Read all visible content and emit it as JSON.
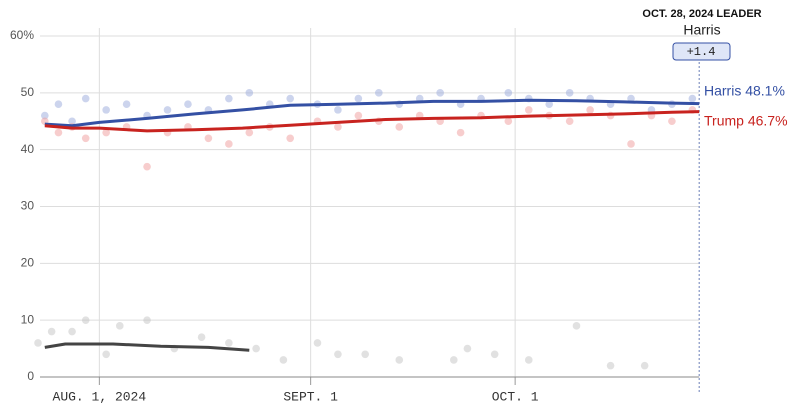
{
  "chart_data": {
    "type": "line",
    "xlim": [
      "2024-07-23",
      "2024-10-29"
    ],
    "xticks": [
      {
        "value": "2024-08-01",
        "label": "AUG. 1, 2024"
      },
      {
        "value": "2024-09-01",
        "label": "SEPT. 1"
      },
      {
        "value": "2024-10-01",
        "label": "OCT. 1"
      }
    ],
    "ylim": [
      0,
      60
    ],
    "yticks": [
      0,
      10,
      20,
      30,
      40,
      50,
      {
        "value": 60,
        "label": "60%"
      }
    ],
    "grid": true,
    "current_date": "2024-10-28",
    "leader": {
      "title": "OCT. 28, 2024 LEADER",
      "name": "Harris",
      "margin_label": "+1.4"
    },
    "polls": [
      {
        "color": "#9aa9dc",
        "x": [
          "2024-07-24",
          "2024-07-26",
          "2024-07-28",
          "2024-07-30",
          "2024-08-02",
          "2024-08-05",
          "2024-08-08",
          "2024-08-11",
          "2024-08-14",
          "2024-08-17",
          "2024-08-20",
          "2024-08-23",
          "2024-08-26",
          "2024-08-29",
          "2024-09-02",
          "2024-09-05",
          "2024-09-08",
          "2024-09-11",
          "2024-09-14",
          "2024-09-17",
          "2024-09-20",
          "2024-09-23",
          "2024-09-26",
          "2024-09-30",
          "2024-10-03",
          "2024-10-06",
          "2024-10-09",
          "2024-10-12",
          "2024-10-15",
          "2024-10-18",
          "2024-10-21",
          "2024-10-24",
          "2024-10-27"
        ],
        "values": [
          46,
          48,
          45,
          49,
          47,
          48,
          46,
          47,
          48,
          47,
          49,
          50,
          48,
          49,
          48,
          47,
          49,
          50,
          48,
          49,
          50,
          48,
          49,
          50,
          49,
          48,
          50,
          49,
          48,
          49,
          47,
          48,
          49
        ]
      },
      {
        "color": "#ef9c9c",
        "x": [
          "2024-07-24",
          "2024-07-26",
          "2024-07-28",
          "2024-07-30",
          "2024-08-02",
          "2024-08-05",
          "2024-08-08",
          "2024-08-11",
          "2024-08-14",
          "2024-08-17",
          "2024-08-20",
          "2024-08-23",
          "2024-08-26",
          "2024-08-29",
          "2024-09-02",
          "2024-09-05",
          "2024-09-08",
          "2024-09-11",
          "2024-09-14",
          "2024-09-17",
          "2024-09-20",
          "2024-09-23",
          "2024-09-26",
          "2024-09-30",
          "2024-10-03",
          "2024-10-06",
          "2024-10-09",
          "2024-10-12",
          "2024-10-15",
          "2024-10-18",
          "2024-10-21",
          "2024-10-24",
          "2024-10-27"
        ],
        "values": [
          45,
          43,
          44,
          42,
          43,
          44,
          37,
          43,
          44,
          42,
          41,
          43,
          44,
          42,
          45,
          44,
          46,
          45,
          44,
          46,
          45,
          43,
          46,
          45,
          47,
          46,
          45,
          47,
          46,
          41,
          46,
          45,
          47
        ]
      },
      {
        "color": "#c4c4c4",
        "x": [
          "2024-07-23",
          "2024-07-25",
          "2024-07-28",
          "2024-07-30",
          "2024-08-02",
          "2024-08-04",
          "2024-08-08",
          "2024-08-12",
          "2024-08-16",
          "2024-08-20",
          "2024-08-24",
          "2024-08-28",
          "2024-09-02",
          "2024-09-05",
          "2024-09-09",
          "2024-09-14",
          "2024-09-22",
          "2024-09-24",
          "2024-09-28",
          "2024-10-03",
          "2024-10-10",
          "2024-10-15",
          "2024-10-20"
        ],
        "values": [
          6,
          8,
          8,
          10,
          4,
          9,
          10,
          5,
          7,
          6,
          5,
          3,
          6,
          4,
          4,
          3,
          3,
          5,
          4,
          3,
          9,
          2,
          2
        ]
      }
    ],
    "trends": [
      {
        "color": "#3450a4",
        "end_label": "Harris 48.1%",
        "x": [
          "2024-07-24",
          "2024-07-28",
          "2024-08-01",
          "2024-08-08",
          "2024-08-15",
          "2024-08-22",
          "2024-08-29",
          "2024-09-05",
          "2024-09-12",
          "2024-09-19",
          "2024-09-26",
          "2024-10-03",
          "2024-10-10",
          "2024-10-17",
          "2024-10-24",
          "2024-10-28"
        ],
        "values": [
          44.5,
          44.2,
          44.8,
          45.5,
          46.3,
          47.0,
          47.8,
          48.0,
          48.2,
          48.5,
          48.5,
          48.7,
          48.6,
          48.4,
          48.2,
          48.1
        ]
      },
      {
        "color": "#c8231f",
        "end_label": "Trump 46.7%",
        "x": [
          "2024-07-24",
          "2024-07-28",
          "2024-08-01",
          "2024-08-08",
          "2024-08-15",
          "2024-08-22",
          "2024-08-29",
          "2024-09-05",
          "2024-09-12",
          "2024-09-19",
          "2024-09-26",
          "2024-10-03",
          "2024-10-10",
          "2024-10-17",
          "2024-10-24",
          "2024-10-28"
        ],
        "values": [
          44.2,
          43.8,
          43.8,
          43.3,
          43.5,
          43.8,
          44.3,
          44.8,
          45.3,
          45.5,
          45.6,
          45.9,
          46.1,
          46.3,
          46.6,
          46.7
        ]
      },
      {
        "color": "#444444",
        "x": [
          "2024-07-24",
          "2024-07-27",
          "2024-08-03",
          "2024-08-10",
          "2024-08-17",
          "2024-08-23"
        ],
        "values": [
          5.2,
          5.8,
          5.8,
          5.4,
          5.2,
          4.7
        ]
      }
    ]
  }
}
